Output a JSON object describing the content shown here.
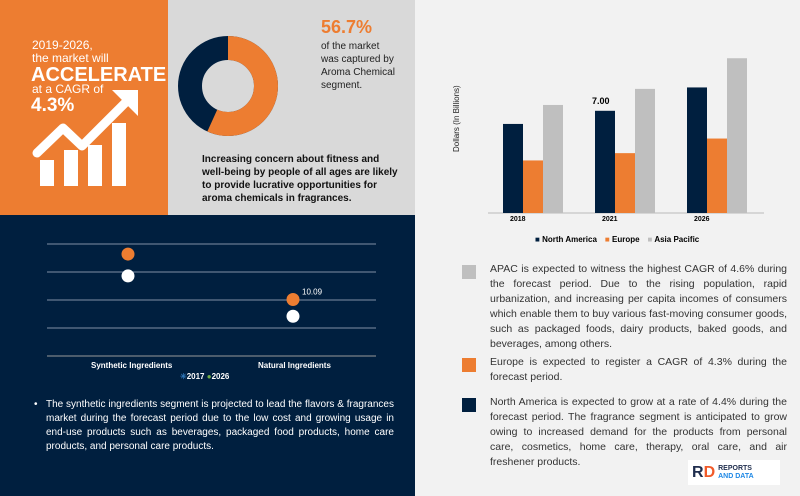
{
  "headline": {
    "line1": "2019-2026,",
    "line2": "the market will",
    "emphasis": "ACCELERATE",
    "line3": "at a CAGR of",
    "cagr": "4.3%"
  },
  "donut": {
    "value_label": "56.7%",
    "caption": "of the market was captured by Aroma Chemical segment.",
    "share_percent": 56.7,
    "colors": {
      "aroma": "#ed7d31",
      "other": "#001f3f"
    }
  },
  "insight": "Increasing concern about fitness and well-being by people of all ages are likely to provide lucrative opportunities for aroma chemicals in fragrances.",
  "chart_data": [
    {
      "type": "bar",
      "categories": [
        "2018",
        "2021",
        "2026"
      ],
      "ylabel": "Dollars (In Billions)",
      "series": [
        {
          "name": "North America",
          "color": "#001f3f",
          "values": [
            6.1,
            7.0,
            8.6
          ]
        },
        {
          "name": "Europe",
          "color": "#ed7d31",
          "values": [
            3.6,
            4.1,
            5.1
          ]
        },
        {
          "name": "Asia Pacific",
          "color": "#bfbfbf",
          "values": [
            7.4,
            8.5,
            10.6
          ]
        }
      ],
      "data_labels": [
        {
          "series": "North America",
          "category": "2021",
          "text": "7.00"
        }
      ],
      "legend": "bottom",
      "grid": false
    },
    {
      "type": "scatter",
      "categories": [
        "Synthetic Ingredients",
        "Natural Ingredients"
      ],
      "series": [
        {
          "name": "2017",
          "color": "#ffffff",
          "values": [
            14.3,
            7.1
          ]
        },
        {
          "name": "2026",
          "color": "#ed7d31",
          "values": [
            18.2,
            10.09
          ]
        }
      ],
      "data_labels": [
        {
          "series": "2026",
          "category": "Natural Ingredients",
          "text": "10.09"
        }
      ],
      "legend_entries": [
        "2017",
        "2026"
      ],
      "legend_marker_colors": [
        "#2e75b6",
        "#70ad47"
      ],
      "ylim": [
        0,
        25
      ],
      "grid": true,
      "legend": "bottom"
    }
  ],
  "bullet": "The synthetic ingredients segment is projected to lead the flavors & fragrances market during the forecast period due to the low cost and growing usage in end-use products such as beverages, packaged food products, home care products, and personal care products.",
  "notes": [
    {
      "color": "#bfbfbf",
      "text": "APAC is expected to witness the highest CAGR of 4.6% during the forecast period. Due to the rising population, rapid urbanization, and increasing per capita incomes of consumers which enable them to buy various fast-moving consumer goods, such as packaged foods, dairy products, baked goods, and beverages, among others."
    },
    {
      "color": "#ed7d31",
      "text": "Europe is expected to register a CAGR of 4.3% during the forecast period."
    },
    {
      "color": "#001f3f",
      "text": "North America is expected to grow  at a rate of 4.4% during the forecast period. The fragrance segment is anticipated to grow owing to increased demand for the products from personal care, cosmetics, home care, therapy, oral care, and air freshener products."
    }
  ],
  "logo": {
    "mark": "RD",
    "line1": "REPORTS",
    "line2": "AND DATA"
  }
}
